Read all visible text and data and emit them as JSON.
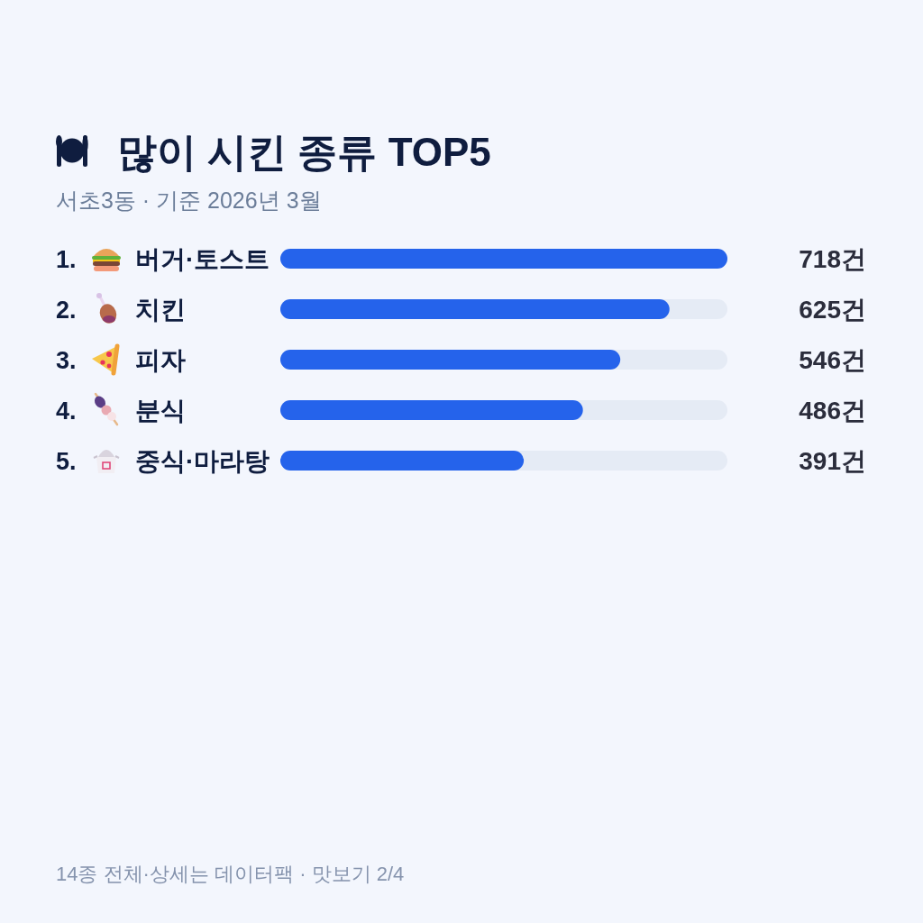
{
  "chart_data": {
    "type": "bar",
    "orientation": "horizontal",
    "title": "많이 시킨 종류 TOP5",
    "subtitle": "서초3동 · 기준 2026년 3월",
    "categories": [
      "1. 버거·토스트",
      "2. 치킨",
      "3. 피자",
      "4. 분식",
      "5. 중식·마라탕"
    ],
    "values": [
      718,
      625,
      546,
      486,
      391
    ],
    "value_labels": [
      "718건",
      "625건",
      "546건",
      "486건",
      "391건"
    ],
    "color": "#2563eb",
    "xlim": [
      0,
      718
    ],
    "tick_labels": "y",
    "annotations": [
      "14종 전체·상세는 데이터팩 · 맛보기 2/4"
    ]
  }
}
